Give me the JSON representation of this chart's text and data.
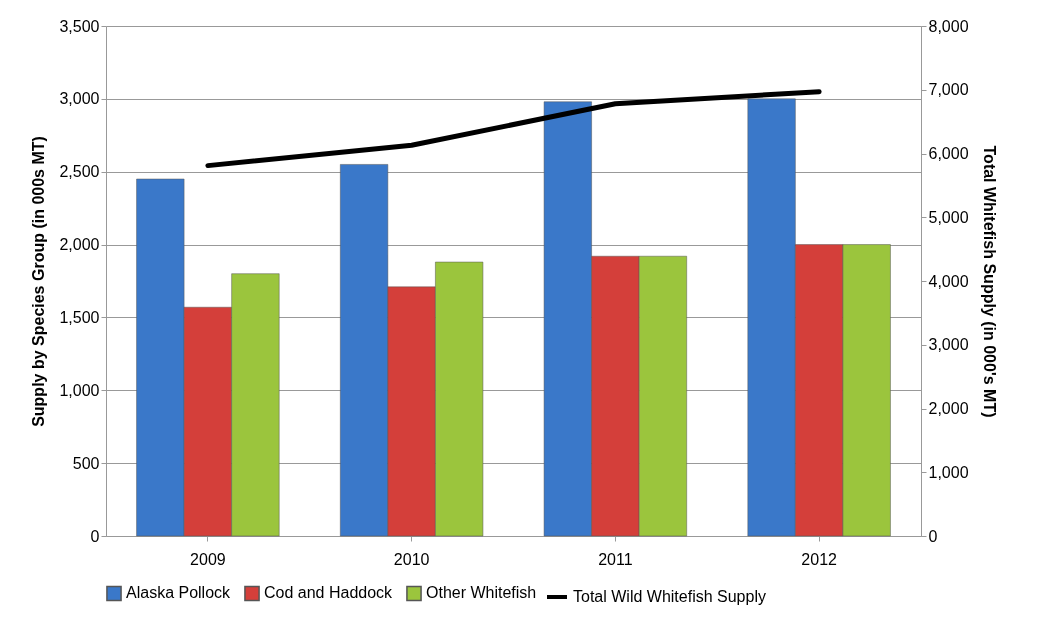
{
  "chart_data": {
    "type": "bar",
    "categories": [
      "2009",
      "2010",
      "2011",
      "2012"
    ],
    "ylabel": "Supply by Species Group  (in 000s MT)",
    "y2label": "Total Whitefish Supply  (in 000's MT)",
    "ylim": [
      0,
      3500
    ],
    "yticks": [
      0,
      500,
      {
        "value": 1000,
        "label": "1,000"
      },
      {
        "value": 1500,
        "label": "1,500"
      },
      {
        "value": 2000,
        "label": "2,000"
      },
      {
        "value": 2500,
        "label": "2,500"
      },
      {
        "value": 3000,
        "label": "3,000"
      },
      {
        "value": 3500,
        "label": "3,500"
      }
    ],
    "y2lim": [
      0,
      8000
    ],
    "y2ticks": [
      0,
      {
        "value": 1000,
        "label": "1,000"
      },
      {
        "value": 2000,
        "label": "2,000"
      },
      {
        "value": 3000,
        "label": "3,000"
      },
      {
        "value": 4000,
        "label": "4,000"
      },
      {
        "value": 5000,
        "label": "5,000"
      },
      {
        "value": 6000,
        "label": "6,000"
      },
      {
        "value": 7000,
        "label": "7,000"
      },
      {
        "value": 8000,
        "label": "8,000"
      }
    ],
    "grid": "y",
    "legend": "bottom",
    "series": [
      {
        "name": "Alaska Pollock",
        "color": "#3a78c9",
        "values": [
          2450,
          2550,
          2980,
          3000
        ]
      },
      {
        "name": "Cod and Haddock",
        "color": "#d43f3a",
        "values": [
          1570,
          1710,
          1920,
          2000
        ]
      },
      {
        "name": "Other Whitefish",
        "color": "#9bc53d",
        "values": [
          1800,
          1880,
          1920,
          2000
        ]
      },
      {
        "name": "Total Wild Whitefish Supply",
        "type": "line",
        "axis": "y2",
        "color": "#000000",
        "values": [
          5810,
          6130,
          6780,
          6970
        ]
      }
    ]
  }
}
